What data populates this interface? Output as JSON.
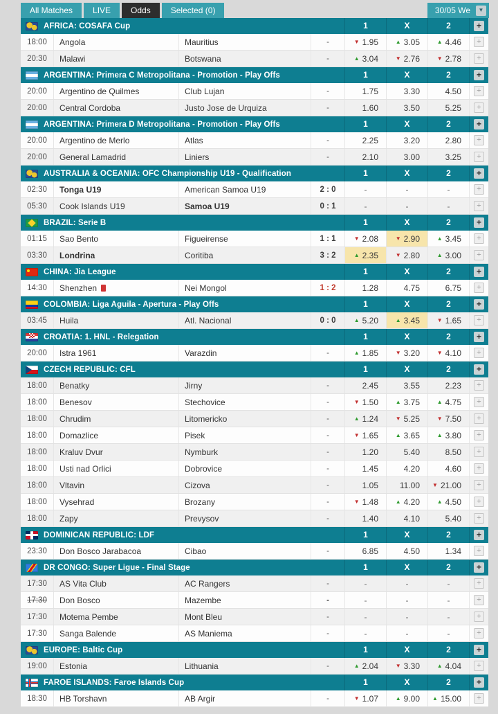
{
  "tabs": [
    {
      "label": "All Matches",
      "active": false
    },
    {
      "label": "LIVE",
      "active": false
    },
    {
      "label": "Odds",
      "active": true
    },
    {
      "label": "Selected (0)",
      "active": false
    }
  ],
  "date_selector": {
    "label": "30/05 We",
    "icon": "chevron-down"
  },
  "odds_columns": [
    "1",
    "X",
    "2"
  ],
  "colors": {
    "header_teal": "#0e7e91",
    "tab_teal": "#38a0ae",
    "active_tab": "#2d2d2d",
    "up_green": "#2f9b2f",
    "down_red": "#c22f2f",
    "highlight_yellow": "#f7e5ab",
    "live_red": "#c0392b"
  },
  "sections": [
    {
      "flag": "globe",
      "league": "AFRICA: COSAFA Cup",
      "matches": [
        {
          "time": "18:00",
          "home": "Angola",
          "away": "Mauritius",
          "score": "-",
          "odds": [
            {
              "v": "1.95",
              "trend": "down"
            },
            {
              "v": "3.05",
              "trend": "up"
            },
            {
              "v": "4.46",
              "trend": "up"
            }
          ]
        },
        {
          "time": "20:30",
          "home": "Malawi",
          "away": "Botswana",
          "score": "-",
          "odds": [
            {
              "v": "3.04",
              "trend": "up"
            },
            {
              "v": "2.76",
              "trend": "down"
            },
            {
              "v": "2.78",
              "trend": "down"
            }
          ]
        }
      ]
    },
    {
      "flag": "argentina",
      "league": "ARGENTINA: Primera C Metropolitana - Promotion - Play Offs",
      "matches": [
        {
          "time": "20:00",
          "home": "Argentino de Quilmes",
          "away": "Club Lujan",
          "score": "-",
          "odds": [
            {
              "v": "1.75"
            },
            {
              "v": "3.30"
            },
            {
              "v": "4.50"
            }
          ]
        },
        {
          "time": "20:00",
          "home": "Central Cordoba",
          "away": "Justo Jose de Urquiza",
          "score": "-",
          "odds": [
            {
              "v": "1.60"
            },
            {
              "v": "3.50"
            },
            {
              "v": "5.25"
            }
          ]
        }
      ]
    },
    {
      "flag": "argentina",
      "league": "ARGENTINA: Primera D Metropolitana - Promotion - Play Offs",
      "matches": [
        {
          "time": "20:00",
          "home": "Argentino de Merlo",
          "away": "Atlas",
          "score": "-",
          "odds": [
            {
              "v": "2.25"
            },
            {
              "v": "3.20"
            },
            {
              "v": "2.80"
            }
          ]
        },
        {
          "time": "20:00",
          "home": "General Lamadrid",
          "away": "Liniers",
          "score": "-",
          "odds": [
            {
              "v": "2.10"
            },
            {
              "v": "3.00"
            },
            {
              "v": "3.25"
            }
          ]
        }
      ]
    },
    {
      "flag": "globe",
      "league": "AUSTRALIA & OCEANIA: OFC Championship U19 - Qualification",
      "matches": [
        {
          "time": "02:30",
          "home": "Tonga U19",
          "home_bold": true,
          "away": "American Samoa U19",
          "score": "2 : 0",
          "score_bold": true,
          "odds": [
            {
              "v": "-"
            },
            {
              "v": "-"
            },
            {
              "v": "-"
            }
          ]
        },
        {
          "time": "05:30",
          "home": "Cook Islands U19",
          "away": "Samoa U19",
          "away_bold": true,
          "score": "0 : 1",
          "score_bold": true,
          "odds": [
            {
              "v": "-"
            },
            {
              "v": "-"
            },
            {
              "v": "-"
            }
          ]
        }
      ]
    },
    {
      "flag": "brazil",
      "league": "BRAZIL: Serie B",
      "matches": [
        {
          "time": "01:15",
          "home": "Sao Bento",
          "away": "Figueirense",
          "score": "1 : 1",
          "score_bold": true,
          "odds": [
            {
              "v": "2.08",
              "trend": "down"
            },
            {
              "v": "2.90",
              "trend": "down",
              "hl": true
            },
            {
              "v": "3.45",
              "trend": "up"
            }
          ]
        },
        {
          "time": "03:30",
          "home": "Londrina",
          "home_bold": true,
          "away": "Coritiba",
          "score": "3 : 2",
          "score_bold": true,
          "odds": [
            {
              "v": "2.35",
              "trend": "up",
              "hl": true
            },
            {
              "v": "2.80",
              "trend": "down"
            },
            {
              "v": "3.00",
              "trend": "up"
            }
          ]
        }
      ]
    },
    {
      "flag": "china",
      "league": "CHINA: Jia League",
      "matches": [
        {
          "time": "14:30",
          "home": "Shenzhen",
          "home_red_card": true,
          "away": "Nei Mongol",
          "score": "1 : 2",
          "score_live": true,
          "odds": [
            {
              "v": "1.28"
            },
            {
              "v": "4.75"
            },
            {
              "v": "6.75"
            }
          ]
        }
      ]
    },
    {
      "flag": "colombia",
      "league": "COLOMBIA: Liga Aguila - Apertura - Play Offs",
      "matches": [
        {
          "time": "03:45",
          "home": "Huila",
          "away": "Atl. Nacional",
          "score": "0 : 0",
          "score_bold": true,
          "odds": [
            {
              "v": "5.20",
              "trend": "up"
            },
            {
              "v": "3.45",
              "trend": "up",
              "hl": true
            },
            {
              "v": "1.65",
              "trend": "down"
            }
          ]
        }
      ]
    },
    {
      "flag": "croatia",
      "league": "CROATIA: 1. HNL - Relegation",
      "matches": [
        {
          "time": "20:00",
          "home": "Istra 1961",
          "away": "Varazdin",
          "score": "-",
          "odds": [
            {
              "v": "1.85",
              "trend": "up"
            },
            {
              "v": "3.20",
              "trend": "down"
            },
            {
              "v": "4.10",
              "trend": "down"
            }
          ]
        }
      ]
    },
    {
      "flag": "czech",
      "league": "CZECH REPUBLIC: CFL",
      "matches": [
        {
          "time": "18:00",
          "home": "Benatky",
          "away": "Jirny",
          "score": "-",
          "odds": [
            {
              "v": "2.45"
            },
            {
              "v": "3.55"
            },
            {
              "v": "2.23"
            }
          ]
        },
        {
          "time": "18:00",
          "home": "Benesov",
          "away": "Stechovice",
          "score": "-",
          "odds": [
            {
              "v": "1.50",
              "trend": "down"
            },
            {
              "v": "3.75",
              "trend": "up"
            },
            {
              "v": "4.75",
              "trend": "up"
            }
          ]
        },
        {
          "time": "18:00",
          "home": "Chrudim",
          "away": "Litomericko",
          "score": "-",
          "odds": [
            {
              "v": "1.24",
              "trend": "up"
            },
            {
              "v": "5.25",
              "trend": "down"
            },
            {
              "v": "7.50",
              "trend": "down"
            }
          ]
        },
        {
          "time": "18:00",
          "home": "Domazlice",
          "away": "Pisek",
          "score": "-",
          "odds": [
            {
              "v": "1.65",
              "trend": "down"
            },
            {
              "v": "3.65",
              "trend": "up"
            },
            {
              "v": "3.80",
              "trend": "up"
            }
          ]
        },
        {
          "time": "18:00",
          "home": "Kraluv Dvur",
          "away": "Nymburk",
          "score": "-",
          "odds": [
            {
              "v": "1.20"
            },
            {
              "v": "5.40"
            },
            {
              "v": "8.50"
            }
          ]
        },
        {
          "time": "18:00",
          "home": "Usti nad Orlici",
          "away": "Dobrovice",
          "score": "-",
          "odds": [
            {
              "v": "1.45"
            },
            {
              "v": "4.20"
            },
            {
              "v": "4.60"
            }
          ]
        },
        {
          "time": "18:00",
          "home": "Vltavin",
          "away": "Cizova",
          "score": "-",
          "odds": [
            {
              "v": "1.05"
            },
            {
              "v": "11.00"
            },
            {
              "v": "21.00",
              "trend": "down"
            }
          ]
        },
        {
          "time": "18:00",
          "home": "Vysehrad",
          "away": "Brozany",
          "score": "-",
          "odds": [
            {
              "v": "1.48",
              "trend": "down"
            },
            {
              "v": "4.20",
              "trend": "up"
            },
            {
              "v": "4.50",
              "trend": "up"
            }
          ]
        },
        {
          "time": "18:00",
          "home": "Zapy",
          "away": "Prevysov",
          "score": "-",
          "odds": [
            {
              "v": "1.40"
            },
            {
              "v": "4.10"
            },
            {
              "v": "5.40"
            }
          ]
        }
      ]
    },
    {
      "flag": "dominican",
      "league": "DOMINICAN REPUBLIC: LDF",
      "matches": [
        {
          "time": "23:30",
          "home": "Don Bosco Jarabacoa",
          "away": "Cibao",
          "score": "-",
          "odds": [
            {
              "v": "6.85"
            },
            {
              "v": "4.50"
            },
            {
              "v": "1.34"
            }
          ]
        }
      ]
    },
    {
      "flag": "drcongo",
      "league": "DR CONGO: Super Ligue - Final Stage",
      "matches": [
        {
          "time": "17:30",
          "home": "AS Vita Club",
          "away": "AC Rangers",
          "score": "-",
          "odds": [
            {
              "v": "-"
            },
            {
              "v": "-"
            },
            {
              "v": "-"
            }
          ]
        },
        {
          "time": "17:30",
          "time_struck": true,
          "home": "Don Bosco",
          "away": "Mazembe",
          "score": "-",
          "score_bold": true,
          "odds": [
            {
              "v": "-"
            },
            {
              "v": "-"
            },
            {
              "v": "-"
            }
          ]
        },
        {
          "time": "17:30",
          "home": "Motema Pembe",
          "away": "Mont Bleu",
          "score": "-",
          "odds": [
            {
              "v": "-"
            },
            {
              "v": "-"
            },
            {
              "v": "-"
            }
          ]
        },
        {
          "time": "17:30",
          "home": "Sanga Balende",
          "away": "AS Maniema",
          "score": "-",
          "odds": [
            {
              "v": "-"
            },
            {
              "v": "-"
            },
            {
              "v": "-"
            }
          ]
        }
      ]
    },
    {
      "flag": "globe",
      "league": "EUROPE: Baltic Cup",
      "matches": [
        {
          "time": "19:00",
          "home": "Estonia",
          "away": "Lithuania",
          "score": "-",
          "odds": [
            {
              "v": "2.04",
              "trend": "up"
            },
            {
              "v": "3.30",
              "trend": "down"
            },
            {
              "v": "4.04",
              "trend": "up"
            }
          ]
        }
      ]
    },
    {
      "flag": "faroe",
      "league": "FAROE ISLANDS: Faroe Islands Cup",
      "matches": [
        {
          "time": "18:30",
          "home": "HB Torshavn",
          "away": "AB Argir",
          "score": "-",
          "odds": [
            {
              "v": "1.07",
              "trend": "down"
            },
            {
              "v": "9.00",
              "trend": "up"
            },
            {
              "v": "15.00",
              "trend": "up"
            }
          ]
        }
      ]
    }
  ]
}
